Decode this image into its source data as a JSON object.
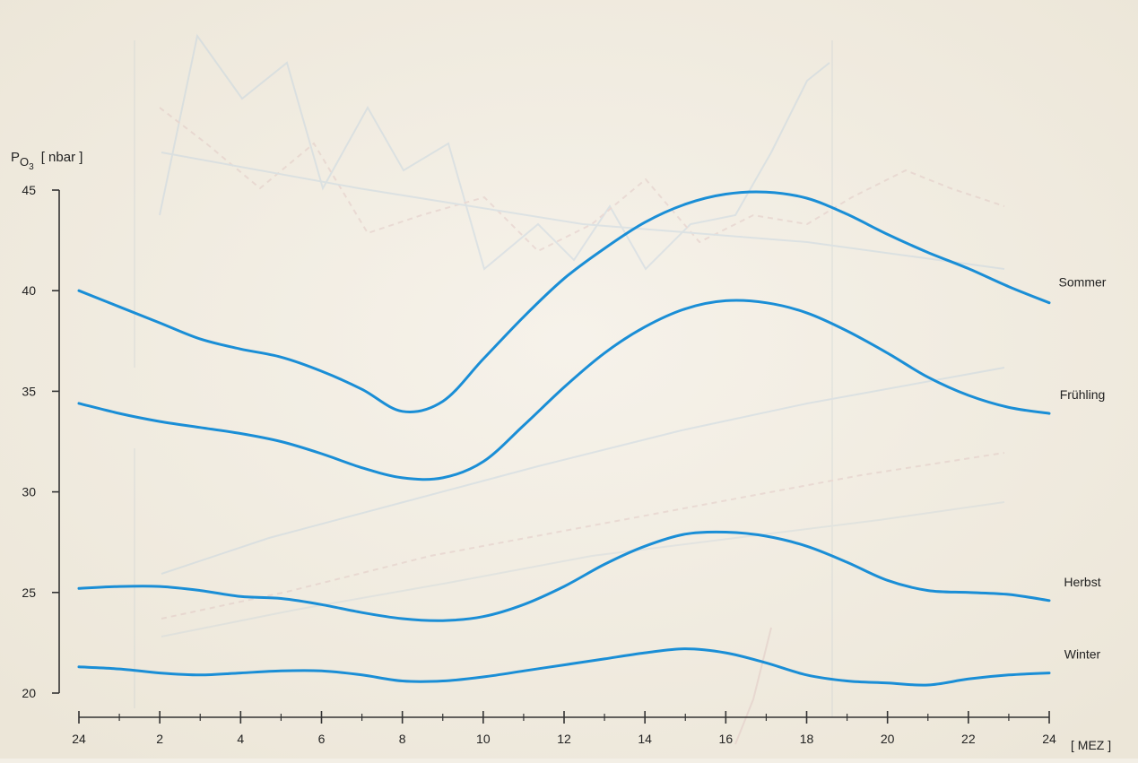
{
  "chart_data": {
    "type": "line",
    "ylabel": {
      "main": "P",
      "subscript": "O",
      "sub_subscript": "3",
      "unit": "[ nbar ]"
    },
    "xlabel": "[ MEZ ]",
    "xlim": [
      0,
      24
    ],
    "ylim": [
      20,
      45
    ],
    "x_ticks": [
      0,
      2,
      4,
      6,
      8,
      10,
      12,
      14,
      16,
      18,
      20,
      22,
      24
    ],
    "x_tick_labels": [
      "24",
      "2",
      "4",
      "6",
      "8",
      "10",
      "12",
      "14",
      "16",
      "18",
      "20",
      "22",
      "24"
    ],
    "y_ticks": [
      20,
      25,
      30,
      35,
      40,
      45
    ],
    "y_tick_labels": [
      "20",
      "25",
      "30",
      "35",
      "40",
      "45"
    ],
    "grid": false,
    "legend": "labels at right end of each line",
    "line_color": "#1a8ed6",
    "x": [
      0,
      1,
      2,
      3,
      4,
      5,
      6,
      7,
      8,
      9,
      10,
      11,
      12,
      13,
      14,
      15,
      16,
      17,
      18,
      19,
      20,
      21,
      22,
      23,
      24
    ],
    "series": [
      {
        "name": "Sommer",
        "values": [
          40.0,
          39.2,
          38.4,
          37.6,
          37.1,
          36.7,
          36.0,
          35.1,
          34.0,
          34.5,
          36.6,
          38.7,
          40.6,
          42.1,
          43.4,
          44.3,
          44.8,
          44.9,
          44.6,
          43.8,
          42.8,
          41.9,
          41.1,
          40.2,
          39.4
        ]
      },
      {
        "name": "Frühling",
        "values": [
          34.4,
          33.9,
          33.5,
          33.2,
          32.9,
          32.5,
          31.9,
          31.2,
          30.7,
          30.7,
          31.5,
          33.3,
          35.2,
          36.9,
          38.2,
          39.1,
          39.5,
          39.4,
          38.9,
          38.0,
          36.9,
          35.7,
          34.8,
          34.2,
          33.9
        ]
      },
      {
        "name": "Herbst",
        "values": [
          25.2,
          25.3,
          25.3,
          25.1,
          24.8,
          24.7,
          24.4,
          24.0,
          23.7,
          23.6,
          23.8,
          24.4,
          25.3,
          26.4,
          27.3,
          27.9,
          28.0,
          27.8,
          27.3,
          26.5,
          25.6,
          25.1,
          25.0,
          24.9,
          24.6
        ]
      },
      {
        "name": "Winter",
        "values": [
          21.3,
          21.2,
          21.0,
          20.9,
          21.0,
          21.1,
          21.1,
          20.9,
          20.6,
          20.6,
          20.8,
          21.1,
          21.4,
          21.7,
          22.0,
          22.2,
          22.0,
          21.5,
          20.9,
          20.6,
          20.5,
          20.4,
          20.7,
          20.9,
          21.0
        ]
      }
    ]
  }
}
